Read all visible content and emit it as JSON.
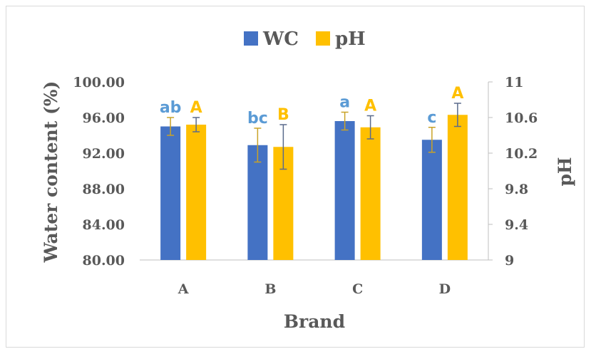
{
  "chart_data": {
    "type": "bar",
    "categories": [
      "A",
      "B",
      "C",
      "D"
    ],
    "xlabel": "Brand",
    "ylabel": "Water content (%)",
    "y2label": "pH",
    "series": [
      {
        "name": "WC",
        "axis": "left",
        "color": "#4472C4",
        "values": [
          95.0,
          92.9,
          95.6,
          93.5
        ],
        "errors": [
          1.0,
          1.9,
          1.0,
          1.4
        ],
        "letters": [
          "ab",
          "bc",
          "a",
          "c"
        ],
        "letter_color": "#5B9BD5"
      },
      {
        "name": "pH",
        "axis": "right",
        "color": "#FFC000",
        "values": [
          10.52,
          10.27,
          10.49,
          10.63
        ],
        "errors": [
          0.08,
          0.25,
          0.13,
          0.13
        ],
        "letters": [
          "A",
          "B",
          "A",
          "A"
        ],
        "letter_color": "#FFC000"
      }
    ],
    "ylim": [
      80,
      100
    ],
    "y_ticks": [
      "80.00",
      "84.00",
      "88.00",
      "92.00",
      "96.00",
      "100.00"
    ],
    "y2lim": [
      9,
      11
    ],
    "y2_ticks": [
      "9",
      "9.4",
      "9.8",
      "10.2",
      "10.6",
      "11"
    ],
    "legend_position": "top-center",
    "grid": false
  }
}
